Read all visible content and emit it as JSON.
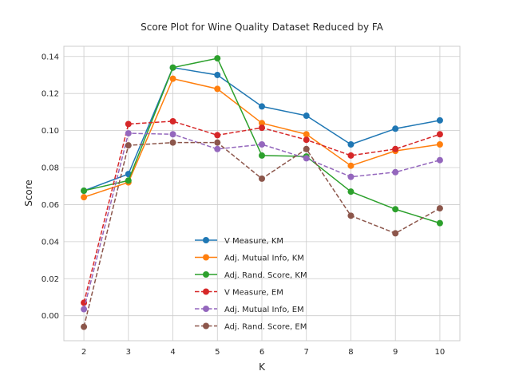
{
  "chart_data": {
    "type": "line",
    "title": "Score Plot for Wine Quality Dataset Reduced by FA",
    "xlabel": "K",
    "ylabel": "Score",
    "x": [
      2,
      3,
      4,
      5,
      6,
      7,
      8,
      9,
      10
    ],
    "xlim": [
      1.55,
      10.45
    ],
    "ylim": [
      -0.0135,
      0.1455
    ],
    "yticks": [
      0.0,
      0.02,
      0.04,
      0.06,
      0.08,
      0.1,
      0.12,
      0.14
    ],
    "ytick_labels": [
      "0.00",
      "0.02",
      "0.04",
      "0.06",
      "0.08",
      "0.10",
      "0.12",
      "0.14"
    ],
    "grid": true,
    "legend_position": "lower-center",
    "series": [
      {
        "name": "V Measure, KM",
        "color": "#1f77b4",
        "dashed": false,
        "values": [
          0.0675,
          0.0765,
          0.134,
          0.13,
          0.113,
          0.108,
          0.0925,
          0.101,
          0.1055
        ]
      },
      {
        "name": "Adj. Mutual Info, KM",
        "color": "#ff7f0e",
        "dashed": false,
        "values": [
          0.064,
          0.072,
          0.128,
          0.1225,
          0.104,
          0.098,
          0.081,
          0.089,
          0.0925
        ]
      },
      {
        "name": "Adj. Rand. Score, KM",
        "color": "#2ca02c",
        "dashed": false,
        "values": [
          0.0675,
          0.073,
          0.134,
          0.139,
          0.0865,
          0.086,
          0.067,
          0.0575,
          0.05
        ]
      },
      {
        "name": "V Measure, EM",
        "color": "#d62728",
        "dashed": true,
        "values": [
          0.007,
          0.1035,
          0.105,
          0.0975,
          0.1015,
          0.095,
          0.0865,
          0.09,
          0.098
        ]
      },
      {
        "name": "Adj. Mutual Info, EM",
        "color": "#9467bd",
        "dashed": true,
        "values": [
          0.0035,
          0.0985,
          0.098,
          0.09,
          0.0925,
          0.085,
          0.075,
          0.0775,
          0.084
        ]
      },
      {
        "name": "Adj. Rand. Score, EM",
        "color": "#8c564b",
        "dashed": true,
        "values": [
          -0.006,
          0.092,
          0.0935,
          0.0935,
          0.074,
          0.09,
          0.054,
          0.0445,
          0.058
        ]
      }
    ]
  }
}
